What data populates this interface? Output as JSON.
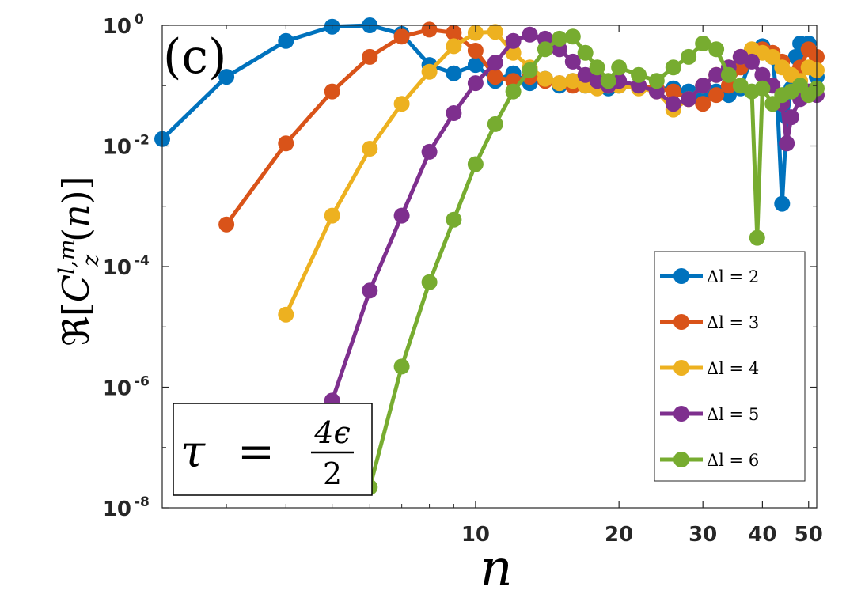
{
  "panel_label": "(c)",
  "annotation": {
    "lhs": "τ",
    "eq": "=",
    "num": "4ϵ",
    "den": "2"
  },
  "chart_data": {
    "type": "line",
    "xscale": "log",
    "yscale": "log",
    "xlim": [
      2.2,
      52
    ],
    "ylim_exp": [
      -8,
      0
    ],
    "xlabel": "n",
    "ylabel": "ℜ[C_z^{l,m}(n)]",
    "x_ticks": [
      10,
      20,
      30,
      40,
      50
    ],
    "x_tick_labels": [
      "10",
      "20",
      "30",
      "40",
      "50"
    ],
    "y_ticks": [
      1e-08,
      1e-06,
      0.0001,
      0.01,
      1
    ],
    "y_tick_labels": [
      {
        "base": "10",
        "exp": "-8"
      },
      {
        "base": "10",
        "exp": "-6"
      },
      {
        "base": "10",
        "exp": "-4"
      },
      {
        "base": "10",
        "exp": "-2"
      },
      {
        "base": "10",
        "exp": "0"
      }
    ],
    "legend_position": "bottom-right",
    "grid": false,
    "series": [
      {
        "name": "Δl = 2",
        "color": "#0072BD",
        "points": [
          [
            2.2,
            0.013
          ],
          [
            3,
            0.14
          ],
          [
            4,
            0.55
          ],
          [
            5,
            0.95
          ],
          [
            6,
            1.0
          ],
          [
            7,
            0.72
          ],
          [
            8,
            0.22
          ],
          [
            9,
            0.16
          ],
          [
            10,
            0.22
          ],
          [
            11,
            0.12
          ],
          [
            12,
            0.16
          ],
          [
            13,
            0.11
          ],
          [
            14,
            0.13
          ],
          [
            15,
            0.1
          ],
          [
            16,
            0.12
          ],
          [
            17,
            0.1
          ],
          [
            18,
            0.11
          ],
          [
            19,
            0.09
          ],
          [
            20,
            0.1
          ],
          [
            22,
            0.1
          ],
          [
            24,
            0.09
          ],
          [
            26,
            0.09
          ],
          [
            28,
            0.08
          ],
          [
            30,
            0.07
          ],
          [
            32,
            0.08
          ],
          [
            34,
            0.07
          ],
          [
            36,
            0.09
          ],
          [
            38,
            0.3
          ],
          [
            40,
            0.45
          ],
          [
            42,
            0.3
          ],
          [
            43,
            0.05
          ],
          [
            44,
            0.0011
          ],
          [
            45,
            0.03
          ],
          [
            46,
            0.09
          ],
          [
            47,
            0.3
          ],
          [
            48,
            0.5
          ],
          [
            50,
            0.5
          ],
          [
            52,
            0.14
          ]
        ]
      },
      {
        "name": "Δl = 3",
        "color": "#D95319",
        "points": [
          [
            3,
            0.0005
          ],
          [
            4,
            0.011
          ],
          [
            5,
            0.08
          ],
          [
            6,
            0.3
          ],
          [
            7,
            0.65
          ],
          [
            8,
            0.85
          ],
          [
            9,
            0.75
          ],
          [
            10,
            0.38
          ],
          [
            11,
            0.14
          ],
          [
            12,
            0.12
          ],
          [
            13,
            0.14
          ],
          [
            14,
            0.12
          ],
          [
            15,
            0.11
          ],
          [
            16,
            0.1
          ],
          [
            17,
            0.11
          ],
          [
            18,
            0.1
          ],
          [
            19,
            0.1
          ],
          [
            20,
            0.11
          ],
          [
            22,
            0.1
          ],
          [
            24,
            0.09
          ],
          [
            26,
            0.08
          ],
          [
            28,
            0.06
          ],
          [
            30,
            0.05
          ],
          [
            32,
            0.07
          ],
          [
            34,
            0.1
          ],
          [
            36,
            0.2
          ],
          [
            38,
            0.3
          ],
          [
            40,
            0.4
          ],
          [
            42,
            0.35
          ],
          [
            44,
            0.25
          ],
          [
            46,
            0.15
          ],
          [
            48,
            0.2
          ],
          [
            50,
            0.4
          ],
          [
            52,
            0.3
          ]
        ]
      },
      {
        "name": "Δl = 4",
        "color": "#EDB120",
        "points": [
          [
            4,
            1.6e-05
          ],
          [
            5,
            0.0007
          ],
          [
            6,
            0.009
          ],
          [
            7,
            0.05
          ],
          [
            8,
            0.17
          ],
          [
            9,
            0.45
          ],
          [
            10,
            0.75
          ],
          [
            11,
            0.78
          ],
          [
            12,
            0.35
          ],
          [
            13,
            0.2
          ],
          [
            14,
            0.13
          ],
          [
            15,
            0.11
          ],
          [
            16,
            0.12
          ],
          [
            17,
            0.1
          ],
          [
            18,
            0.09
          ],
          [
            19,
            0.1
          ],
          [
            20,
            0.1
          ],
          [
            22,
            0.09
          ],
          [
            24,
            0.08
          ],
          [
            26,
            0.04
          ],
          [
            28,
            0.06
          ],
          [
            30,
            0.1
          ],
          [
            32,
            0.15
          ],
          [
            34,
            0.2
          ],
          [
            36,
            0.3
          ],
          [
            38,
            0.4
          ],
          [
            40,
            0.35
          ],
          [
            42,
            0.3
          ],
          [
            44,
            0.2
          ],
          [
            46,
            0.15
          ],
          [
            48,
            0.12
          ],
          [
            50,
            0.2
          ],
          [
            52,
            0.18
          ]
        ]
      },
      {
        "name": "Δl = 5",
        "color": "#7E2F8E",
        "points": [
          [
            5,
            6e-07
          ],
          [
            6,
            4e-05
          ],
          [
            7,
            0.0007
          ],
          [
            8,
            0.008
          ],
          [
            9,
            0.035
          ],
          [
            10,
            0.11
          ],
          [
            11,
            0.24
          ],
          [
            12,
            0.55
          ],
          [
            13,
            0.7
          ],
          [
            14,
            0.6
          ],
          [
            15,
            0.4
          ],
          [
            16,
            0.25
          ],
          [
            17,
            0.15
          ],
          [
            18,
            0.12
          ],
          [
            19,
            0.1
          ],
          [
            20,
            0.12
          ],
          [
            22,
            0.1
          ],
          [
            24,
            0.08
          ],
          [
            26,
            0.05
          ],
          [
            28,
            0.06
          ],
          [
            30,
            0.1
          ],
          [
            32,
            0.15
          ],
          [
            34,
            0.2
          ],
          [
            36,
            0.3
          ],
          [
            38,
            0.25
          ],
          [
            40,
            0.15
          ],
          [
            42,
            0.1
          ],
          [
            44,
            0.05
          ],
          [
            45,
            0.011
          ],
          [
            46,
            0.03
          ],
          [
            48,
            0.06
          ],
          [
            50,
            0.08
          ],
          [
            52,
            0.07
          ]
        ]
      },
      {
        "name": "Δl = 6",
        "color": "#77AC30",
        "points": [
          [
            6,
            2.2e-08
          ],
          [
            7,
            2.2e-06
          ],
          [
            8,
            5.5e-05
          ],
          [
            9,
            0.0006
          ],
          [
            10,
            0.005
          ],
          [
            11,
            0.023
          ],
          [
            12,
            0.08
          ],
          [
            13,
            0.18
          ],
          [
            14,
            0.4
          ],
          [
            15,
            0.6
          ],
          [
            16,
            0.65
          ],
          [
            17,
            0.35
          ],
          [
            18,
            0.2
          ],
          [
            19,
            0.12
          ],
          [
            20,
            0.2
          ],
          [
            22,
            0.15
          ],
          [
            24,
            0.12
          ],
          [
            26,
            0.2
          ],
          [
            28,
            0.3
          ],
          [
            30,
            0.5
          ],
          [
            32,
            0.4
          ],
          [
            34,
            0.15
          ],
          [
            36,
            0.1
          ],
          [
            38,
            0.08
          ],
          [
            39,
            0.0003
          ],
          [
            40,
            0.09
          ],
          [
            42,
            0.05
          ],
          [
            44,
            0.07
          ],
          [
            46,
            0.08
          ],
          [
            48,
            0.1
          ],
          [
            50,
            0.07
          ],
          [
            52,
            0.09
          ]
        ]
      }
    ]
  }
}
